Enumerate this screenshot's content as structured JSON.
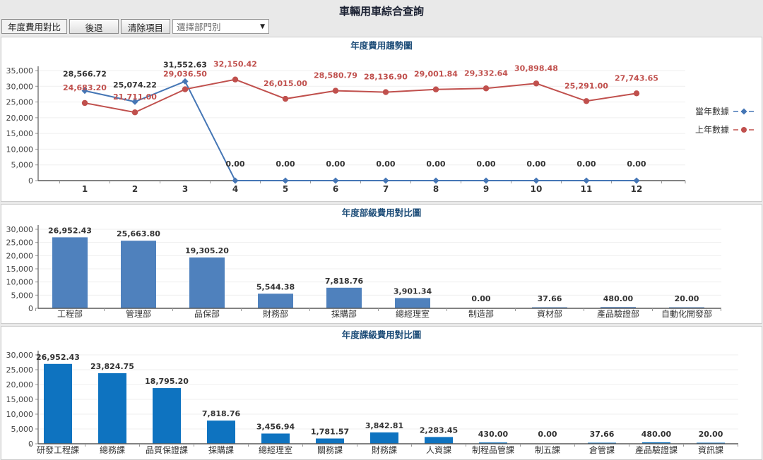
{
  "page": {
    "title": "車輛用車綜合查詢"
  },
  "toolbar": {
    "mode_label": "年度費用對比",
    "back_button": "後退",
    "clear_button": "清除項目",
    "department_select": {
      "value": "選擇部門別"
    }
  },
  "chart_data": [
    {
      "type": "line",
      "title": "年度費用趨勢圖",
      "x": [
        1,
        2,
        3,
        4,
        5,
        6,
        7,
        8,
        9,
        10,
        11,
        12
      ],
      "series": [
        {
          "name": "當年數據",
          "color": "#4576b5",
          "marker": "diamond",
          "label_color": "#333333",
          "values": [
            28566.72,
            25074.22,
            31552.63,
            0.0,
            0.0,
            0.0,
            0.0,
            0.0,
            0.0,
            0.0,
            0.0,
            0.0
          ]
        },
        {
          "name": "上年數據",
          "color": "#c0504d",
          "marker": "circle",
          "label_color": "#c0504d",
          "values": [
            24683.2,
            21711.0,
            29036.5,
            32150.42,
            26015.0,
            28580.79,
            28136.9,
            29001.84,
            29332.64,
            30898.48,
            25291.0,
            27743.65
          ]
        }
      ],
      "ylim": [
        0,
        35000
      ],
      "ytick_step": 5000,
      "grid": true,
      "legend_position": "right"
    },
    {
      "type": "bar",
      "title": "年度部級費用對比圖",
      "categories": [
        "工程部",
        "管理部",
        "品保部",
        "財務部",
        "採購部",
        "總經理室",
        "制造部",
        "資材部",
        "產品驗證部",
        "自動化開發部"
      ],
      "values": [
        26952.43,
        25663.8,
        19305.2,
        5544.38,
        7818.76,
        3901.34,
        0.0,
        37.66,
        480.0,
        20.0
      ],
      "bar_color": "#4f81bd",
      "ylim": [
        0,
        30000
      ],
      "ytick_step": 5000,
      "grid": true
    },
    {
      "type": "bar",
      "title": "年度課級費用對比圖",
      "categories": [
        "研發工程課",
        "總務課",
        "品質保證課",
        "採購課",
        "總經理室",
        "關務課",
        "財務課",
        "人資課",
        "制程品管課",
        "制五課",
        "倉管課",
        "產品驗證課",
        "資訊課"
      ],
      "values": [
        26952.43,
        23824.75,
        18795.2,
        7818.76,
        3456.94,
        1781.57,
        3842.81,
        2283.45,
        430.0,
        0.0,
        37.66,
        480.0,
        20.0
      ],
      "bar_color": "#0e73c0",
      "ylim": [
        0,
        30000
      ],
      "ytick_step": 5000,
      "grid": true
    }
  ]
}
